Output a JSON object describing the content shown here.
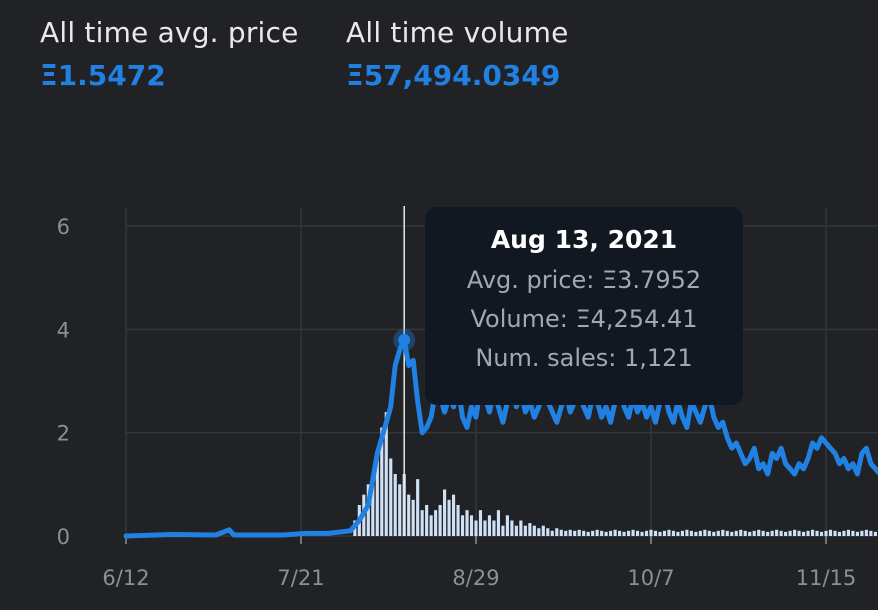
{
  "stats": {
    "avg_price": {
      "label": "All time avg. price",
      "value": "Ξ1.5472"
    },
    "volume": {
      "label": "All time volume",
      "value": "Ξ57,494.0349"
    }
  },
  "tooltip": {
    "date": "Aug 13, 2021",
    "avg_price": "Avg. price: Ξ3.7952",
    "volume": "Volume: Ξ4,254.41",
    "num_sales": "Num. sales: 1,121"
  },
  "colors": {
    "line": "#2081e2",
    "bar": "#cfe1f6",
    "grid": "#33363b",
    "background": "#202225"
  },
  "chart_data": {
    "type": "line+bar",
    "x_ticks": [
      {
        "label": "6/12",
        "day": 0
      },
      {
        "label": "7/21",
        "day": 39
      },
      {
        "label": "8/29",
        "day": 78
      },
      {
        "label": "10/7",
        "day": 117
      },
      {
        "label": "11/15",
        "day": 156
      }
    ],
    "y_ticks": [
      0,
      2,
      4,
      6
    ],
    "ylim": [
      0,
      6
    ],
    "x_range_days": [
      0,
      168
    ],
    "highlight": {
      "day": 62,
      "price": 3.7952
    },
    "price_series": {
      "name": "Avg. price (Ξ)",
      "points": [
        [
          0,
          0.0
        ],
        [
          10,
          0.03
        ],
        [
          20,
          0.02
        ],
        [
          23,
          0.12
        ],
        [
          24,
          0.02
        ],
        [
          35,
          0.02
        ],
        [
          40,
          0.05
        ],
        [
          45,
          0.05
        ],
        [
          50,
          0.1
        ],
        [
          52,
          0.3
        ],
        [
          54,
          0.6
        ],
        [
          56,
          1.6
        ],
        [
          58,
          2.2
        ],
        [
          59,
          2.5
        ],
        [
          60,
          3.3
        ],
        [
          61,
          3.6
        ],
        [
          62,
          3.8
        ],
        [
          63,
          3.3
        ],
        [
          64,
          3.4
        ],
        [
          65,
          2.6
        ],
        [
          66,
          2.0
        ],
        [
          67,
          2.1
        ],
        [
          68,
          2.3
        ],
        [
          69,
          2.8
        ],
        [
          70,
          2.7
        ],
        [
          71,
          2.4
        ],
        [
          72,
          2.7
        ],
        [
          73,
          2.5
        ],
        [
          74,
          2.9
        ],
        [
          75,
          2.3
        ],
        [
          76,
          2.1
        ],
        [
          77,
          2.5
        ],
        [
          78,
          2.3
        ],
        [
          79,
          2.9
        ],
        [
          80,
          2.7
        ],
        [
          81,
          2.4
        ],
        [
          82,
          2.8
        ],
        [
          83,
          2.5
        ],
        [
          84,
          2.2
        ],
        [
          85,
          2.6
        ],
        [
          86,
          2.9
        ],
        [
          87,
          2.5
        ],
        [
          88,
          2.8
        ],
        [
          89,
          2.4
        ],
        [
          90,
          2.6
        ],
        [
          91,
          2.3
        ],
        [
          92,
          2.5
        ],
        [
          93,
          2.9
        ],
        [
          94,
          2.6
        ],
        [
          95,
          2.4
        ],
        [
          96,
          2.2
        ],
        [
          97,
          2.5
        ],
        [
          98,
          2.8
        ],
        [
          99,
          2.4
        ],
        [
          100,
          2.6
        ],
        [
          101,
          2.8
        ],
        [
          102,
          2.5
        ],
        [
          103,
          2.3
        ],
        [
          104,
          2.7
        ],
        [
          105,
          2.6
        ],
        [
          106,
          2.3
        ],
        [
          107,
          2.5
        ],
        [
          108,
          2.2
        ],
        [
          109,
          2.6
        ],
        [
          110,
          2.9
        ],
        [
          111,
          2.5
        ],
        [
          112,
          2.3
        ],
        [
          113,
          2.7
        ],
        [
          114,
          2.4
        ],
        [
          115,
          2.6
        ],
        [
          116,
          2.3
        ],
        [
          117,
          2.5
        ],
        [
          118,
          2.2
        ],
        [
          119,
          2.6
        ],
        [
          120,
          2.8
        ],
        [
          121,
          2.4
        ],
        [
          122,
          2.2
        ],
        [
          123,
          2.6
        ],
        [
          124,
          2.3
        ],
        [
          125,
          2.1
        ],
        [
          126,
          2.6
        ],
        [
          127,
          2.4
        ],
        [
          128,
          2.2
        ],
        [
          129,
          2.5
        ],
        [
          130,
          2.7
        ],
        [
          131,
          2.3
        ],
        [
          132,
          2.1
        ],
        [
          133,
          2.2
        ],
        [
          134,
          1.9
        ],
        [
          135,
          1.7
        ],
        [
          136,
          1.8
        ],
        [
          137,
          1.6
        ],
        [
          138,
          1.4
        ],
        [
          139,
          1.5
        ],
        [
          140,
          1.7
        ],
        [
          141,
          1.3
        ],
        [
          142,
          1.4
        ],
        [
          143,
          1.2
        ],
        [
          144,
          1.6
        ],
        [
          145,
          1.5
        ],
        [
          146,
          1.7
        ],
        [
          147,
          1.4
        ],
        [
          148,
          1.3
        ],
        [
          149,
          1.2
        ],
        [
          150,
          1.4
        ],
        [
          151,
          1.3
        ],
        [
          152,
          1.5
        ],
        [
          153,
          1.8
        ],
        [
          154,
          1.7
        ],
        [
          155,
          1.9
        ],
        [
          156,
          1.8
        ],
        [
          157,
          1.7
        ],
        [
          158,
          1.6
        ],
        [
          159,
          1.4
        ],
        [
          160,
          1.5
        ],
        [
          161,
          1.3
        ],
        [
          162,
          1.4
        ],
        [
          163,
          1.2
        ],
        [
          164,
          1.6
        ],
        [
          165,
          1.7
        ],
        [
          166,
          1.4
        ],
        [
          167,
          1.3
        ],
        [
          168,
          1.2
        ]
      ]
    },
    "volume_series": {
      "name": "Volume (relative)",
      "values_by_day_from_51": [
        0.3,
        0.6,
        0.8,
        1.0,
        1.1,
        1.5,
        2.1,
        2.4,
        1.5,
        1.2,
        1.0,
        1.2,
        0.8,
        0.7,
        1.1,
        0.5,
        0.6,
        0.4,
        0.5,
        0.6,
        0.9,
        0.7,
        0.8,
        0.6,
        0.4,
        0.5,
        0.4,
        0.3,
        0.5,
        0.3,
        0.4,
        0.3,
        0.5,
        0.2,
        0.4,
        0.3,
        0.2,
        0.3,
        0.2,
        0.25,
        0.2,
        0.15,
        0.2,
        0.15,
        0.1,
        0.15,
        0.12,
        0.1,
        0.12,
        0.1,
        0.12,
        0.1,
        0.08,
        0.1,
        0.12,
        0.1,
        0.08,
        0.1,
        0.12,
        0.1,
        0.08,
        0.1,
        0.12,
        0.1,
        0.08,
        0.1,
        0.12,
        0.1,
        0.08,
        0.1,
        0.12,
        0.1,
        0.08,
        0.1,
        0.12,
        0.1,
        0.08,
        0.1,
        0.12,
        0.1,
        0.08,
        0.1,
        0.12,
        0.1,
        0.08,
        0.1,
        0.12,
        0.1,
        0.08,
        0.1,
        0.12,
        0.1,
        0.08,
        0.1,
        0.12,
        0.1,
        0.08,
        0.1,
        0.12,
        0.1,
        0.08,
        0.1,
        0.12,
        0.1,
        0.08,
        0.1,
        0.12,
        0.1,
        0.08,
        0.1,
        0.12,
        0.1,
        0.08,
        0.1,
        0.12,
        0.1,
        0.08,
        0.1
      ]
    }
  }
}
